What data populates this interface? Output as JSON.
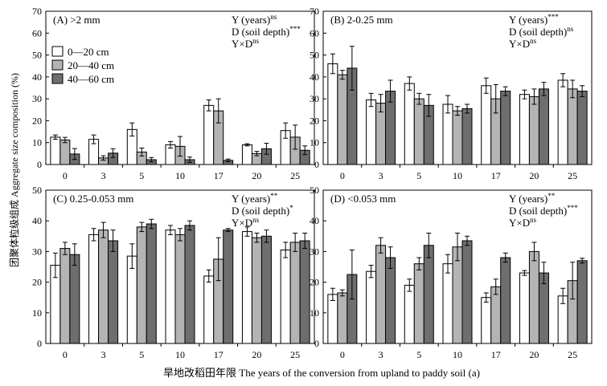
{
  "figure": {
    "ylabel": "团聚体粒级组成 Aggregate size composition (%)",
    "xlabel": "旱地改稻田年限 The years of the conversion from upland to paddy soil (a)"
  },
  "legend": {
    "entries": [
      {
        "label": "0—20 cm",
        "color": "#ffffff"
      },
      {
        "label": "20—40 cm",
        "color": "#b4b4b4"
      },
      {
        "label": "40—60 cm",
        "color": "#6e6e6e"
      }
    ]
  },
  "chart_data": [
    {
      "type": "bar",
      "panel_label": "(A) >2 mm",
      "categories": [
        "0",
        "3",
        "5",
        "10",
        "17",
        "20",
        "25"
      ],
      "ylim": [
        0,
        70
      ],
      "yticks": [
        0,
        10,
        20,
        30,
        40,
        50,
        60,
        70
      ],
      "stats": [
        {
          "name": "Y (years)",
          "sup": "ns"
        },
        {
          "name": "D (soil depth)",
          "sup": "***"
        },
        {
          "name": "Y×D",
          "sup": "ns"
        }
      ],
      "series": [
        {
          "name": "0—20 cm",
          "color": "#ffffff",
          "values": [
            12.5,
            11.5,
            16,
            9,
            27,
            9,
            15.5
          ],
          "errors": [
            1,
            2,
            3,
            1.5,
            2.5,
            0.5,
            3.5
          ]
        },
        {
          "name": "20—40 cm",
          "color": "#b4b4b4",
          "values": [
            11.2,
            3,
            5.7,
            8.3,
            24.5,
            5,
            12.5
          ],
          "errors": [
            1.2,
            1,
            1.8,
            4.5,
            5.5,
            1,
            5.5
          ]
        },
        {
          "name": "40—60 cm",
          "color": "#6e6e6e",
          "values": [
            4.8,
            5.2,
            2.2,
            2.2,
            1.9,
            7.2,
            6.5
          ],
          "errors": [
            2.5,
            2,
            1,
            1.2,
            0.6,
            2.5,
            2
          ]
        }
      ]
    },
    {
      "type": "bar",
      "panel_label": "(B) 2-0.25 mm",
      "categories": [
        "0",
        "3",
        "5",
        "10",
        "17",
        "20",
        "25"
      ],
      "ylim": [
        0,
        70
      ],
      "yticks": [
        0,
        10,
        20,
        30,
        40,
        50,
        60,
        70
      ],
      "stats": [
        {
          "name": "Y (years)",
          "sup": "***"
        },
        {
          "name": "D (soil depth)",
          "sup": "ns"
        },
        {
          "name": "Y×D",
          "sup": "ns"
        }
      ],
      "series": [
        {
          "name": "0—20 cm",
          "color": "#ffffff",
          "values": [
            46,
            29.5,
            37,
            27.5,
            36,
            32,
            38.5
          ],
          "errors": [
            4.5,
            3,
            3,
            4,
            3.5,
            2,
            3
          ]
        },
        {
          "name": "20—40 cm",
          "color": "#b4b4b4",
          "values": [
            41,
            28,
            30,
            24.5,
            30,
            31,
            34.5
          ],
          "errors": [
            2,
            4,
            2.5,
            2,
            6.5,
            3.5,
            4
          ]
        },
        {
          "name": "40—60 cm",
          "color": "#6e6e6e",
          "values": [
            44,
            33.5,
            27,
            25.5,
            33.5,
            34.5,
            33.5
          ],
          "errors": [
            10,
            5,
            5,
            2,
            2,
            3,
            2.5
          ]
        }
      ]
    },
    {
      "type": "bar",
      "panel_label": "(C) 0.25-0.053 mm",
      "categories": [
        "0",
        "3",
        "5",
        "10",
        "17",
        "20",
        "25"
      ],
      "ylim": [
        0,
        50
      ],
      "yticks": [
        0,
        10,
        20,
        30,
        40,
        50
      ],
      "stats": [
        {
          "name": "Y (years)",
          "sup": "**"
        },
        {
          "name": "D (soil depth)",
          "sup": "*"
        },
        {
          "name": "Y×D",
          "sup": "ns"
        }
      ],
      "series": [
        {
          "name": "0—20 cm",
          "color": "#ffffff",
          "values": [
            25.5,
            35.5,
            28.5,
            37,
            22,
            36.5,
            30.5
          ],
          "errors": [
            4,
            2,
            4,
            1.5,
            2,
            1.5,
            2.5
          ]
        },
        {
          "name": "20—40 cm",
          "color": "#b4b4b4",
          "values": [
            31,
            37,
            38,
            35.5,
            27.5,
            34.5,
            33
          ],
          "errors": [
            2,
            2.5,
            1.5,
            2,
            7,
            1.5,
            3
          ]
        },
        {
          "name": "40—60 cm",
          "color": "#6e6e6e",
          "values": [
            29,
            33.5,
            39,
            38.5,
            37,
            35,
            33.5
          ],
          "errors": [
            3.5,
            3.5,
            1.5,
            1.5,
            0.5,
            2,
            2.5
          ]
        }
      ]
    },
    {
      "type": "bar",
      "panel_label": "(D) <0.053 mm",
      "categories": [
        "0",
        "3",
        "5",
        "10",
        "17",
        "20",
        "25"
      ],
      "ylim": [
        0,
        50
      ],
      "yticks": [
        0,
        10,
        20,
        30,
        40,
        50
      ],
      "stats": [
        {
          "name": "Y (years)",
          "sup": "**"
        },
        {
          "name": "D (soil depth)",
          "sup": "***"
        },
        {
          "name": "Y×D",
          "sup": "ns"
        }
      ],
      "series": [
        {
          "name": "0—20 cm",
          "color": "#ffffff",
          "values": [
            16,
            23.5,
            19,
            26,
            15,
            23,
            15.5
          ],
          "errors": [
            2,
            2,
            2,
            3,
            1.5,
            0.8,
            2.5
          ]
        },
        {
          "name": "20—40 cm",
          "color": "#b4b4b4",
          "values": [
            16.5,
            32,
            26,
            31.5,
            18.5,
            30,
            20.5
          ],
          "errors": [
            1,
            2.5,
            2,
            4.5,
            2.5,
            3,
            6
          ]
        },
        {
          "name": "40—60 cm",
          "color": "#6e6e6e",
          "values": [
            22.5,
            28,
            32,
            33.5,
            28,
            23,
            27
          ],
          "errors": [
            8,
            3.5,
            4,
            1.5,
            1.5,
            3.5,
            0.8
          ]
        }
      ]
    }
  ]
}
